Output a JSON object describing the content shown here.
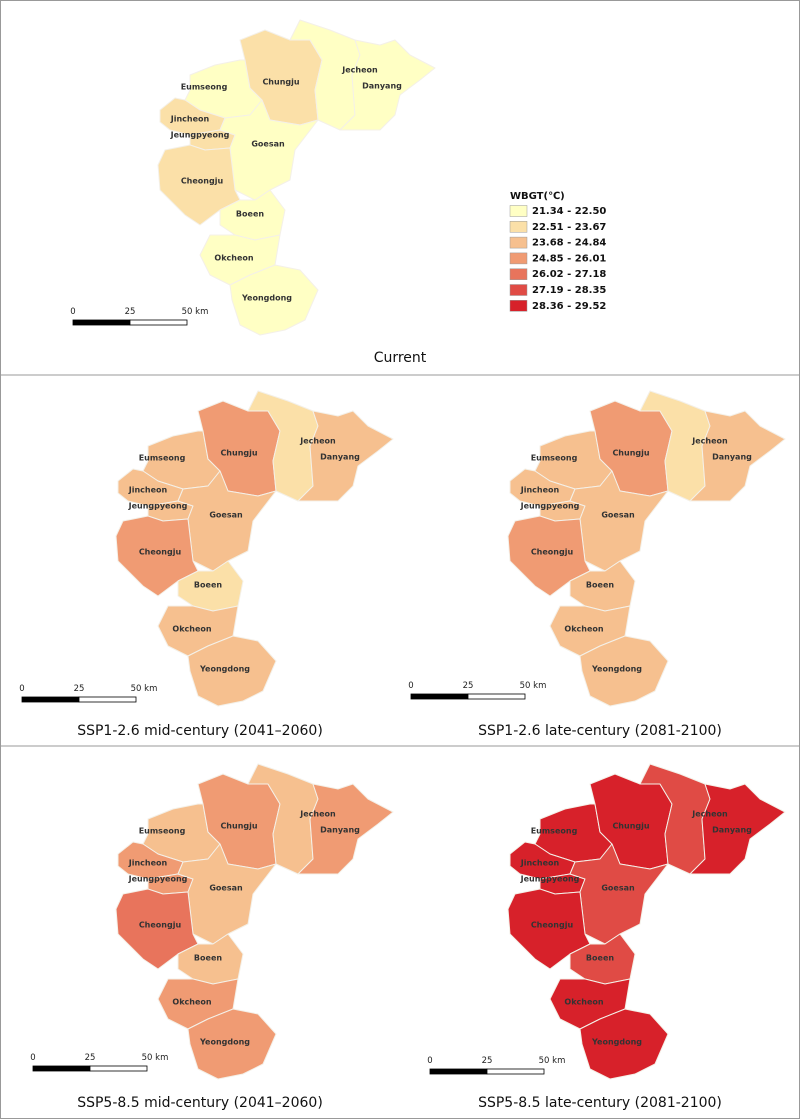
{
  "legend": {
    "title": "WBGT(℃)",
    "classes": [
      {
        "label": "21.34 - 22.50",
        "color": "#ffffc4"
      },
      {
        "label": "22.51 - 23.67",
        "color": "#fbe0a8"
      },
      {
        "label": "23.68 - 24.84",
        "color": "#f6c08f"
      },
      {
        "label": "24.85 - 26.01",
        "color": "#f09b73"
      },
      {
        "label": "26.02 - 27.18",
        "color": "#e8745c"
      },
      {
        "label": "27.19 - 28.35",
        "color": "#e04b45"
      },
      {
        "label": "28.36 - 29.52",
        "color": "#d7212a"
      }
    ]
  },
  "regions": [
    "Eumseong",
    "Chungju",
    "Jecheon",
    "Danyang",
    "Jincheon",
    "Jeungpyeong",
    "Goesan",
    "Cheongju",
    "Boeen",
    "Okcheon",
    "Yeongdong"
  ],
  "scale_bar": {
    "labels": [
      "0",
      "25",
      "50 km"
    ]
  },
  "panels": [
    {
      "caption": "Current",
      "classes": [
        0,
        1,
        0,
        0,
        1,
        1,
        0,
        1,
        0,
        0,
        0
      ]
    },
    {
      "caption": "SSP1-2.6 mid-century (2041–2060)",
      "classes": [
        2,
        3,
        1,
        2,
        2,
        2,
        2,
        3,
        1,
        2,
        2
      ]
    },
    {
      "caption": "SSP1-2.6 late-century (2081-2100)",
      "classes": [
        2,
        3,
        1,
        2,
        2,
        2,
        2,
        3,
        2,
        2,
        2
      ]
    },
    {
      "caption": "SSP5-8.5 mid-century (2041–2060)",
      "classes": [
        2,
        3,
        2,
        3,
        3,
        3,
        2,
        4,
        2,
        3,
        3
      ]
    },
    {
      "caption": "SSP5-8.5 late-century (2081-2100)",
      "classes": [
        6,
        6,
        5,
        6,
        6,
        6,
        5,
        6,
        5,
        6,
        6
      ]
    }
  ]
}
